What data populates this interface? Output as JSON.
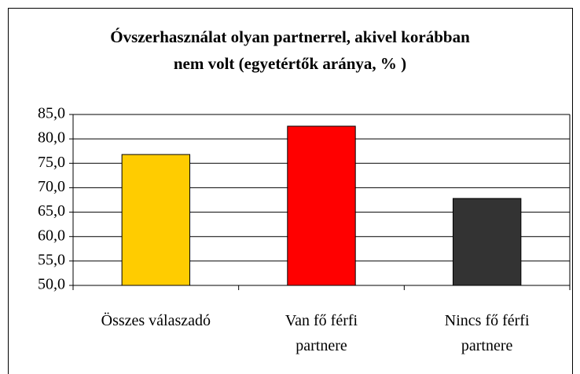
{
  "chart_data": {
    "type": "bar",
    "title": "Óvszerhasználat olyan partnerrel, akivel korábban nem volt (egyetértők aránya, % )",
    "categories": [
      "Összes válaszadó",
      "Van fő férfi partnere",
      "Nincs fő férfi partnere"
    ],
    "values": [
      76.8,
      82.6,
      67.8
    ],
    "colors": [
      "#ffcc00",
      "#ff0000",
      "#333333"
    ],
    "ylim": [
      50,
      85
    ],
    "yticks": [
      {
        "value": 50,
        "label": "50,0"
      },
      {
        "value": 55,
        "label": "55,0"
      },
      {
        "value": 60,
        "label": "60,0"
      },
      {
        "value": 65,
        "label": "65,0"
      },
      {
        "value": 70,
        "label": "70,0"
      },
      {
        "value": 75,
        "label": "75,0"
      },
      {
        "value": 80,
        "label": "80,0"
      },
      {
        "value": 85,
        "label": "85,0"
      }
    ],
    "grid": true
  }
}
